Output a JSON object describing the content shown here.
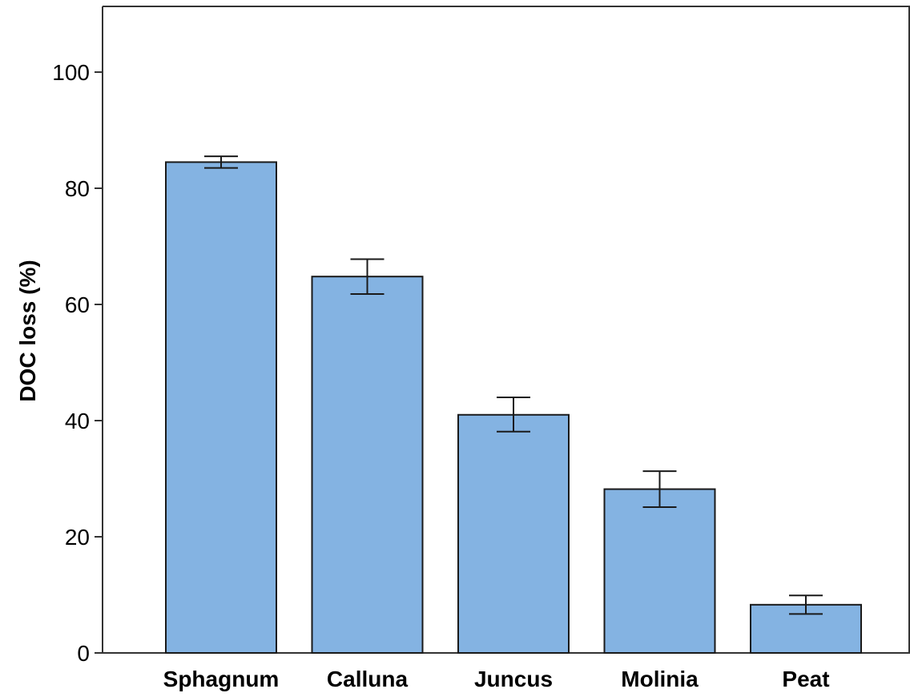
{
  "chart_data": {
    "type": "bar",
    "categories": [
      "Sphagnum",
      "Calluna",
      "Juncus",
      "Molinia",
      "Peat"
    ],
    "values": [
      84.5,
      64.8,
      41.0,
      28.2,
      8.3
    ],
    "error_upper": [
      85.5,
      67.8,
      44.0,
      31.3,
      9.9
    ],
    "error_lower": [
      83.5,
      61.8,
      38.1,
      25.1,
      6.7
    ],
    "title": "",
    "xlabel": "",
    "ylabel": "DOC loss (%)",
    "ylim": [
      0,
      100
    ],
    "yticks": [
      0,
      20,
      40,
      60,
      80,
      100
    ],
    "grid": false,
    "legend": "none",
    "colors": {
      "bar_fill": "#84b3e2",
      "bar_stroke": "#1a1a1a",
      "axis": "#333333",
      "text": "#000000"
    }
  }
}
